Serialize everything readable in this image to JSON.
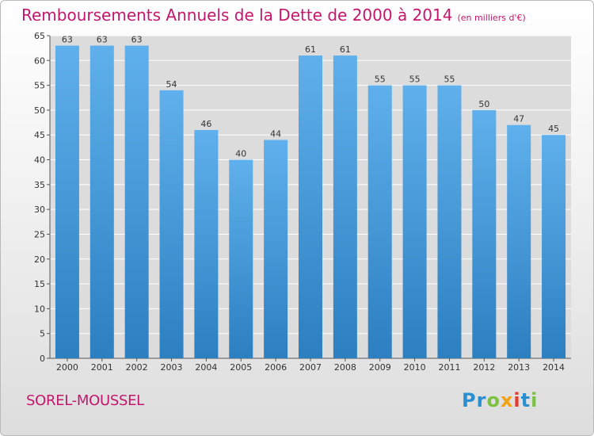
{
  "header": {
    "title": "Remboursements Annuels de la Dette de 2000 à 2014",
    "unit": "(en milliers d'€)"
  },
  "footer": {
    "commune": "SOREL-MOUSSEL",
    "logo_text": "Proxiti",
    "logo_letters": [
      "P",
      "r",
      "o",
      "x",
      "i",
      "t",
      "i"
    ],
    "logo_colors": [
      "#2a8fd1",
      "#2a8fd1",
      "#7cc242",
      "#f2a213",
      "#e53b2c",
      "#2a8fd1",
      "#7cc242"
    ]
  },
  "chart_data": {
    "type": "bar",
    "title": "Remboursements Annuels de la Dette de 2000 à 2014",
    "xlabel": "",
    "ylabel": "",
    "categories": [
      "2000",
      "2001",
      "2002",
      "2003",
      "2004",
      "2005",
      "2006",
      "2007",
      "2008",
      "2009",
      "2010",
      "2011",
      "2012",
      "2013",
      "2014"
    ],
    "values": [
      63,
      63,
      63,
      54,
      46,
      40,
      44,
      61,
      61,
      55,
      55,
      55,
      50,
      47,
      45
    ],
    "ylim": [
      0,
      65
    ],
    "yticks": [
      0,
      5,
      10,
      15,
      20,
      25,
      30,
      35,
      40,
      45,
      50,
      55,
      60,
      65
    ],
    "grid": true,
    "colors": {
      "bar_top": "#5fb0ec",
      "bar_bottom": "#2c7fc0",
      "grid": "#ffffff",
      "plot_bg": "#dcdcdc"
    }
  }
}
